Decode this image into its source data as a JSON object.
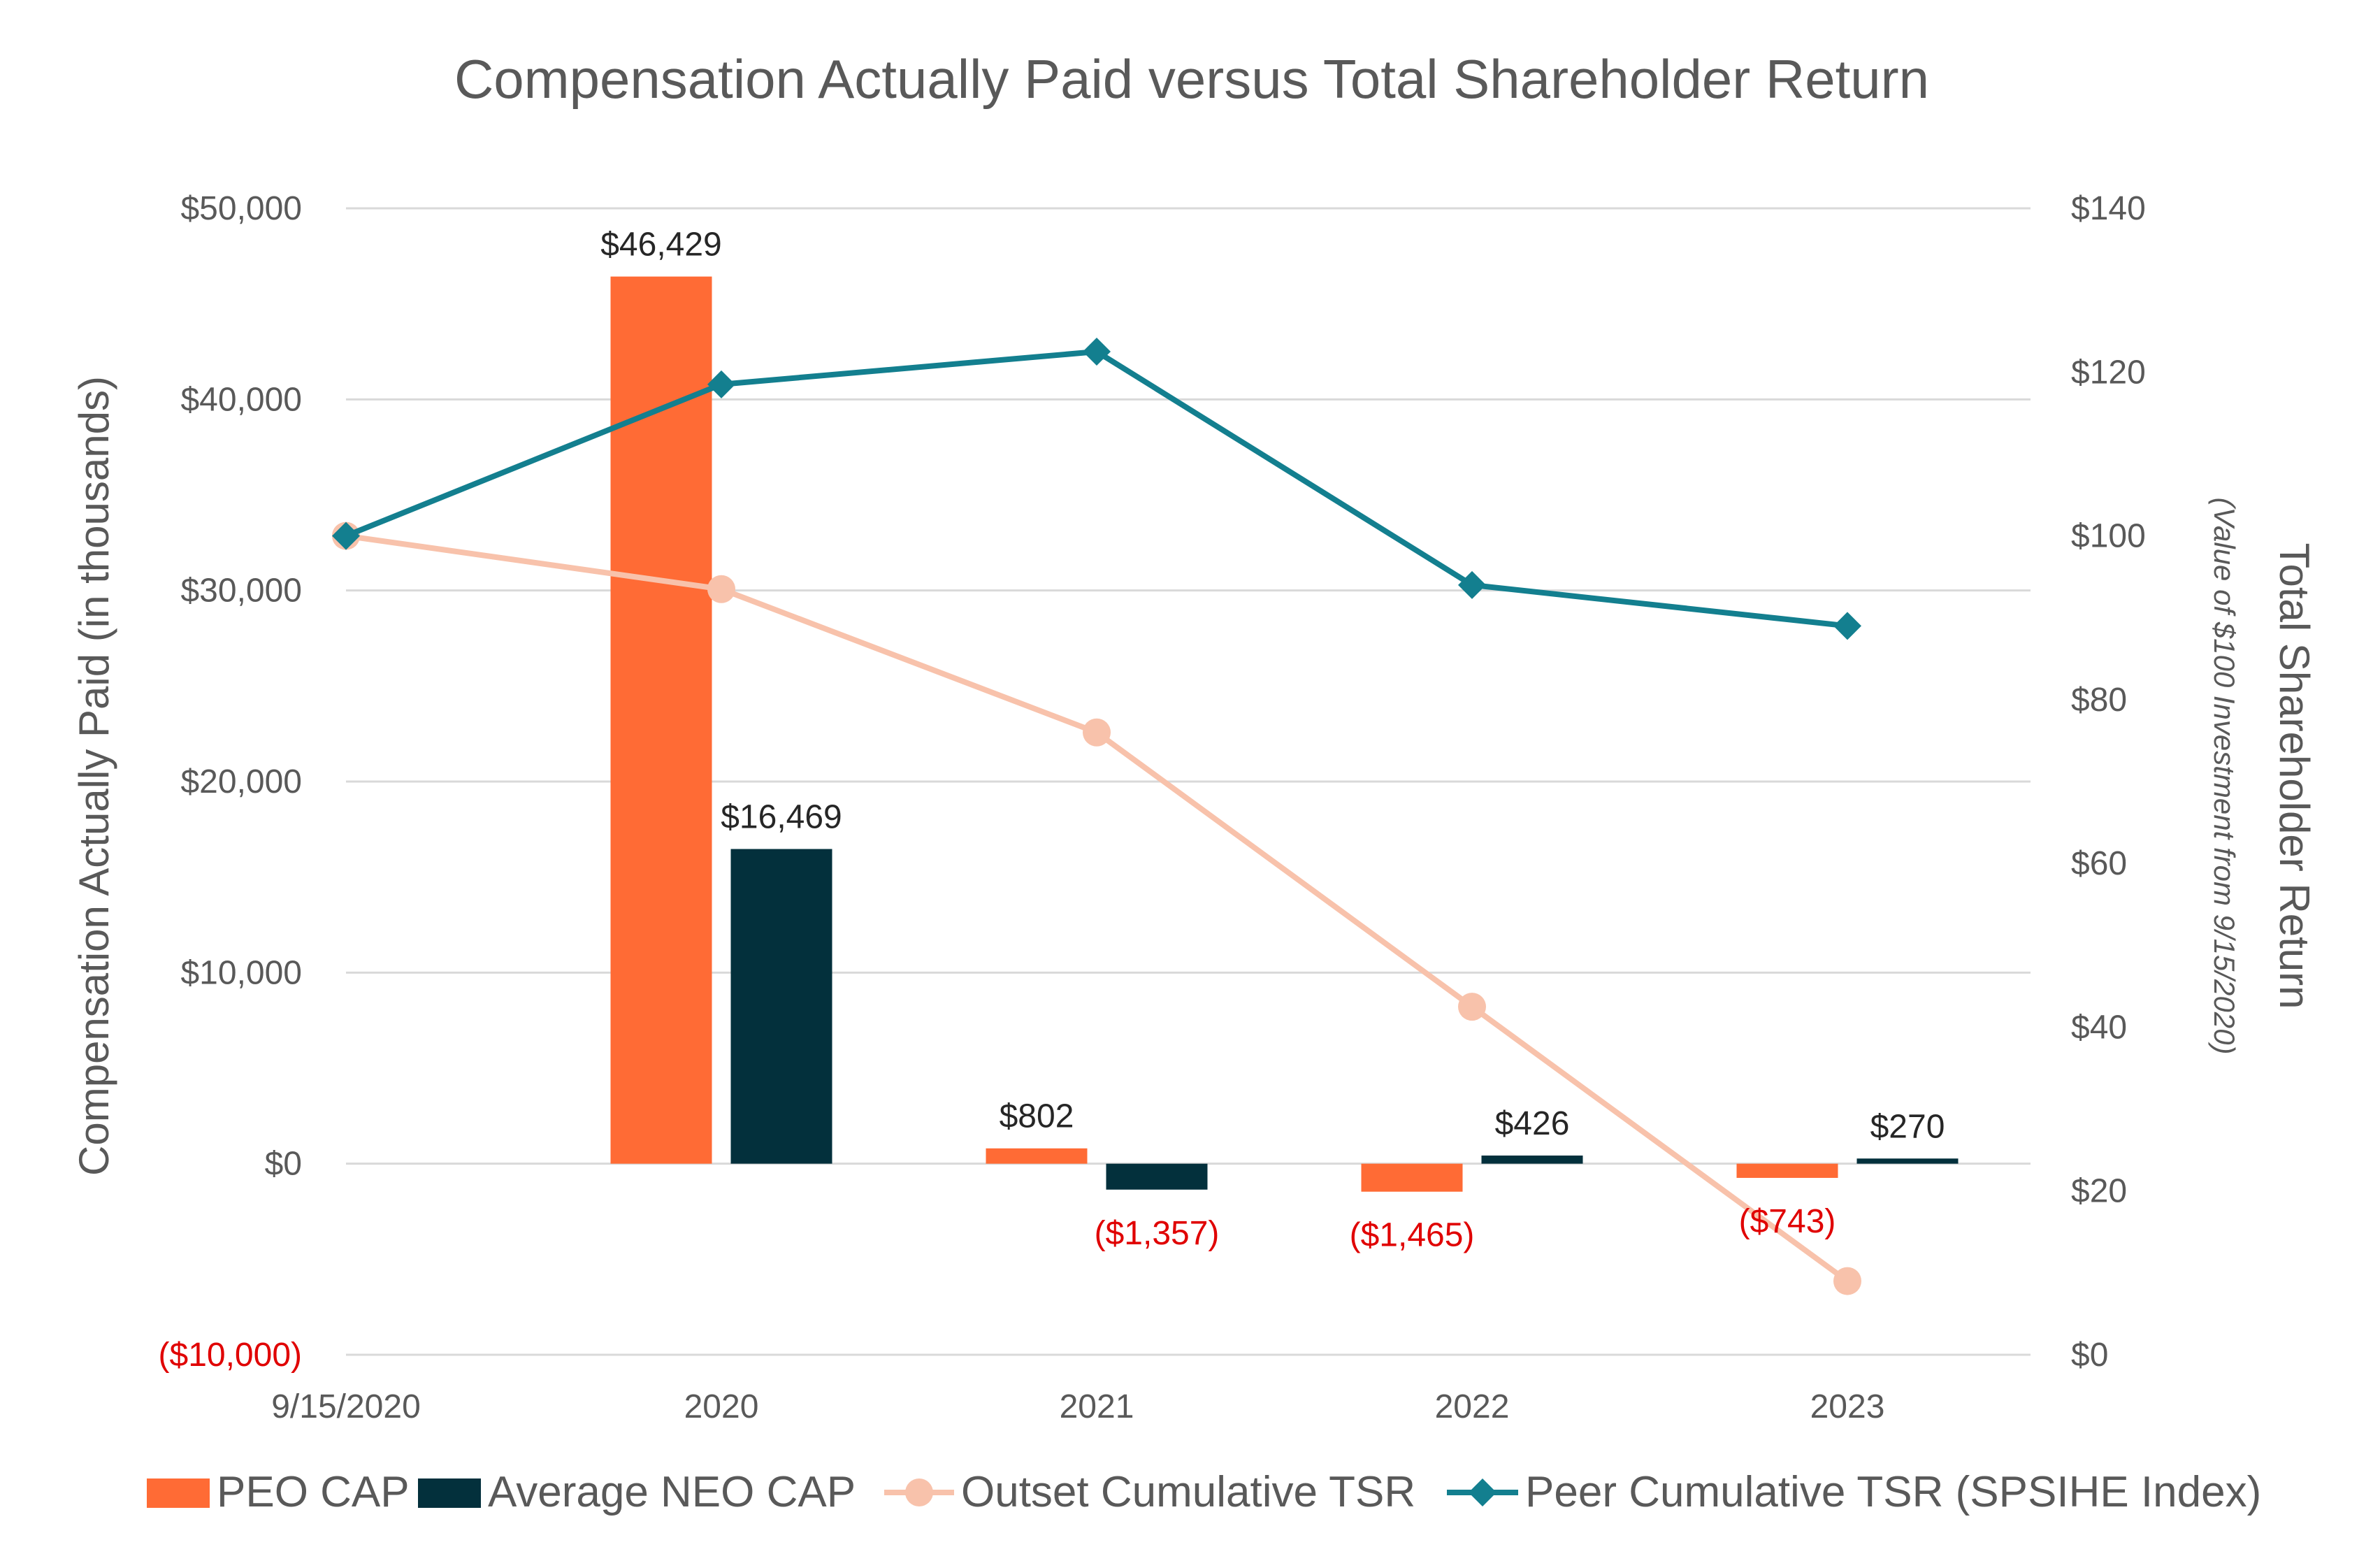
{
  "chart_data": {
    "type": "bar",
    "title": "Compensation Actually Paid versus Total Shareholder Return",
    "categories": [
      "9/15/2020",
      "2020",
      "2021",
      "2022",
      "2023"
    ],
    "ylabel": "Compensation Actually Paid (in thousands)",
    "y2label": "Total Shareholder Return",
    "y2sublabel": "(Value of $100 Investment from 9/15/2020)",
    "ylim": [
      -10000,
      50000
    ],
    "y2lim": [
      0,
      140
    ],
    "yticks": [
      {
        "value": 50000,
        "label": "$50,000"
      },
      {
        "value": 40000,
        "label": "$40,000"
      },
      {
        "value": 30000,
        "label": "$30,000"
      },
      {
        "value": 20000,
        "label": "$20,000"
      },
      {
        "value": 10000,
        "label": "$10,000"
      },
      {
        "value": 0,
        "label": "$0"
      },
      {
        "value": -10000,
        "label": "($10,000)"
      }
    ],
    "y2ticks": [
      {
        "value": 140,
        "label": "$140"
      },
      {
        "value": 120,
        "label": "$120"
      },
      {
        "value": 100,
        "label": "$100"
      },
      {
        "value": 80,
        "label": "$80"
      },
      {
        "value": 60,
        "label": "$60"
      },
      {
        "value": 40,
        "label": "$40"
      },
      {
        "value": 20,
        "label": "$20"
      },
      {
        "value": 0,
        "label": "$0"
      }
    ],
    "grid": true,
    "legend_position": "bottom",
    "bar_series": [
      {
        "name": "PEO CAP",
        "color": "#ff6b35",
        "values": [
          null,
          46429,
          802,
          -1465,
          -743
        ],
        "labels": [
          "",
          "$46,429",
          "$802",
          "($1,465)",
          "($743)"
        ]
      },
      {
        "name": "Average NEO CAP",
        "color": "#03303c",
        "values": [
          null,
          16469,
          -1357,
          426,
          270
        ],
        "labels": [
          "",
          "$16,469",
          "($1,357)",
          "$426",
          "$270"
        ]
      }
    ],
    "line_series": [
      {
        "name": "Outset Cumulative TSR",
        "color": "#f8c2ab",
        "marker": "circle",
        "axis": "right",
        "values": [
          100,
          93.5,
          76,
          42.5,
          9
        ]
      },
      {
        "name": "Peer Cumulative TSR (SPSIHE Index)",
        "color": "#137f8f",
        "marker": "diamond",
        "axis": "right",
        "values": [
          100,
          118.5,
          122.5,
          94,
          89
        ]
      }
    ],
    "negative_label_color": "#e00000"
  }
}
